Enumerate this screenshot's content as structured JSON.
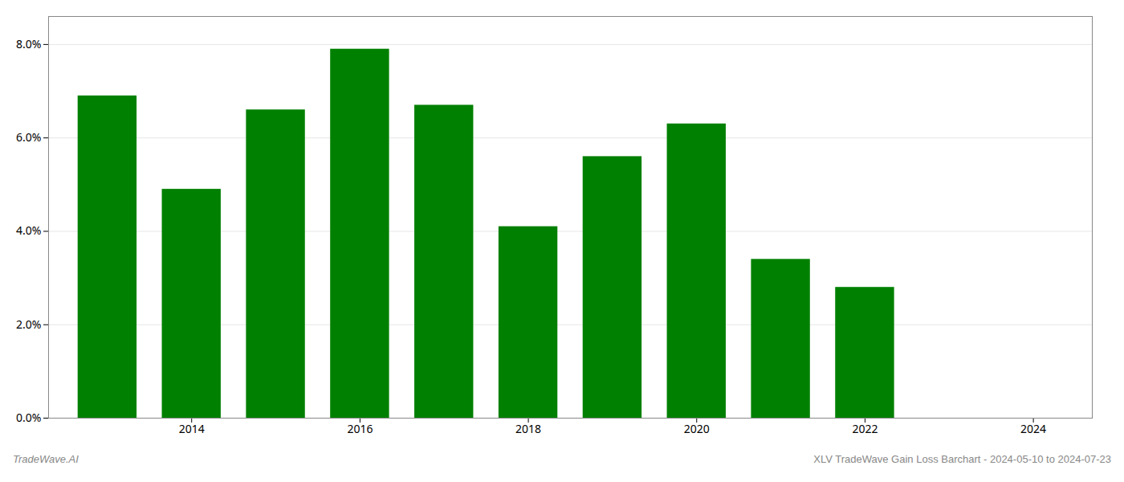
{
  "chart_data": {
    "type": "bar",
    "x": [
      2013,
      2014,
      2015,
      2016,
      2017,
      2018,
      2019,
      2020,
      2021,
      2022
    ],
    "values": [
      0.069,
      0.049,
      0.066,
      0.079,
      0.067,
      0.041,
      0.056,
      0.063,
      0.034,
      0.028
    ],
    "color": "#008000",
    "xlim": [
      2012.3,
      2024.7
    ],
    "xticks": [
      2014,
      2016,
      2018,
      2020,
      2022,
      2024
    ],
    "ylim": [
      0.0,
      0.086
    ],
    "yticks": [
      {
        "value": 0.0,
        "label": "0.0%"
      },
      {
        "value": 0.02,
        "label": "2.0%"
      },
      {
        "value": 0.04,
        "label": "4.0%"
      },
      {
        "value": 0.06,
        "label": "6.0%"
      },
      {
        "value": 0.08,
        "label": "8.0%"
      }
    ],
    "grid": true,
    "annotations": [
      "TradeWave.AI",
      "XLV TradeWave Gain Loss Barchart - 2024-05-10 to 2024-07-23"
    ]
  }
}
